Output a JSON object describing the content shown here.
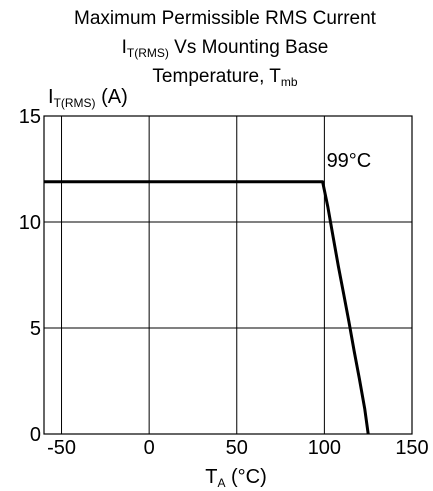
{
  "chart_data": {
    "type": "line",
    "title_line1": "Maximum Permissible RMS Current",
    "title_line2_main": "I",
    "title_line2_sub": "T(RMS)",
    "title_line2_rest": " Vs Mounting Base",
    "title_line3_main": "Temperature, T",
    "title_line3_sub": "mb",
    "ylabel_main": "I",
    "ylabel_sub": "T(RMS)",
    "ylabel_unit": " (A)",
    "xlabel_main": "T",
    "xlabel_sub": "A",
    "xlabel_unit": " (°C)",
    "xlim": [
      -60,
      150
    ],
    "ylim": [
      0,
      15
    ],
    "xticks": [
      -50,
      0,
      50,
      100,
      150
    ],
    "xtick_labels": [
      "-50",
      "0",
      "50",
      "100",
      "150"
    ],
    "yticks": [
      0,
      5,
      10,
      15
    ],
    "ytick_labels": [
      "0",
      "5",
      "10",
      "15"
    ],
    "grid": true,
    "series": [
      {
        "x": [
          -60,
          99,
          102,
          105,
          108,
          111,
          114,
          117,
          120,
          123,
          125
        ],
        "y": [
          11.9,
          11.9,
          10.7,
          9.3,
          7.9,
          6.6,
          5.3,
          3.9,
          2.6,
          1.2,
          0
        ]
      }
    ],
    "annotation": {
      "text": "99°C",
      "x": 114,
      "y": 12.6
    },
    "colors": {
      "line": "#000000",
      "grid": "#000000",
      "frame": "#000000",
      "background": "#ffffff"
    }
  }
}
